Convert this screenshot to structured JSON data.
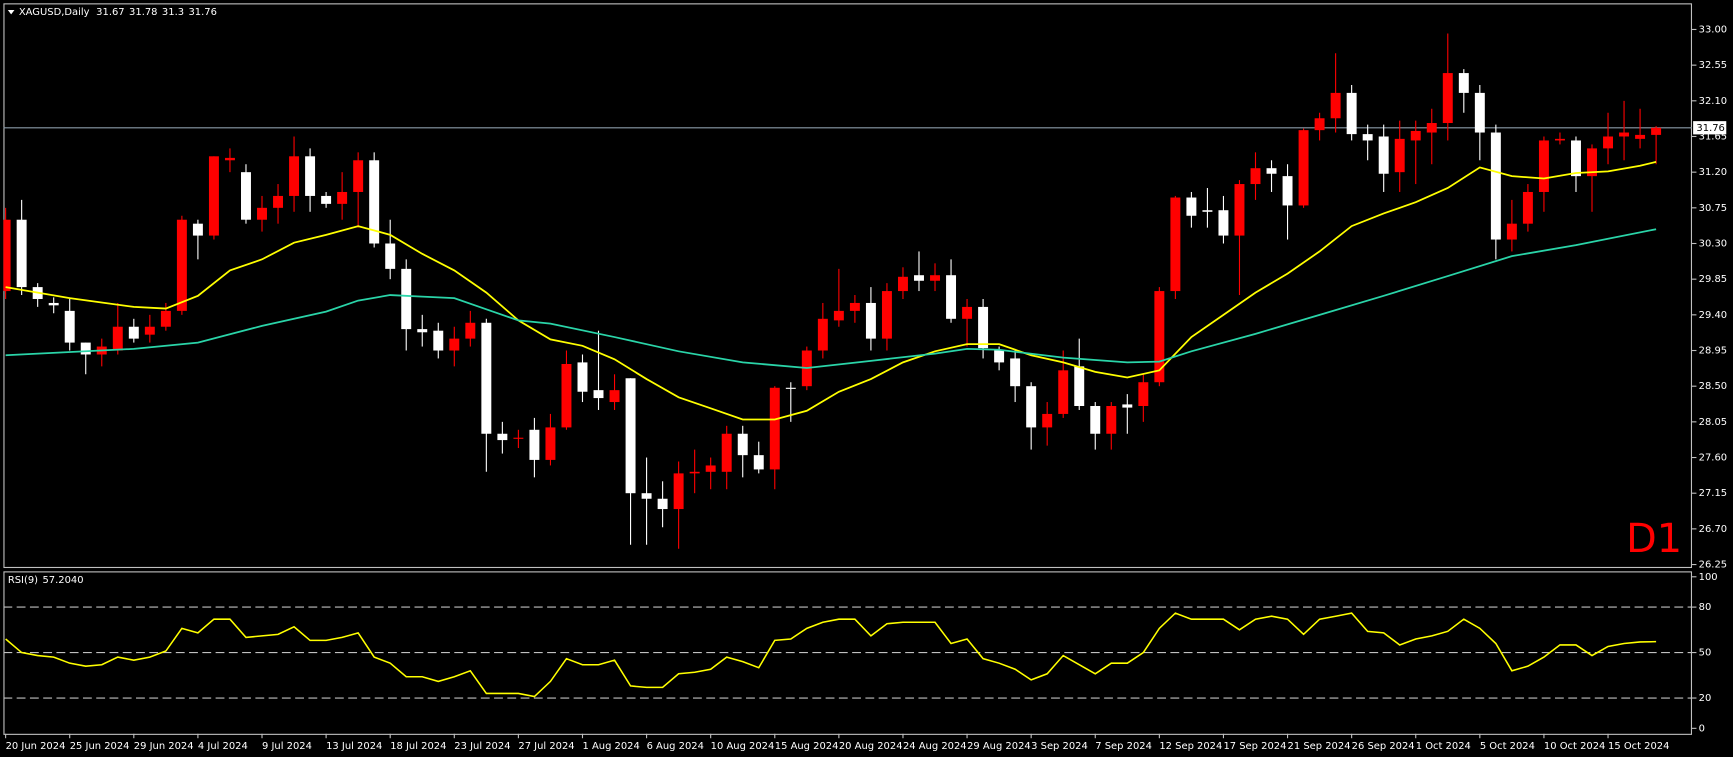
{
  "chart_data": {
    "type": "candlestick",
    "symbol": "XAGUSD,Daily",
    "timeframe_label": "D1",
    "categories": [
      "20 Jun 2024",
      null,
      null,
      null,
      "25 Jun 2024",
      null,
      null,
      null,
      "29 Jun 2024",
      null,
      null,
      null,
      "4 Jul 2024",
      null,
      null,
      null,
      "9 Jul 2024",
      null,
      null,
      null,
      "13 Jul 2024",
      null,
      null,
      null,
      "18 Jul 2024",
      null,
      null,
      null,
      "23 Jul 2024",
      null,
      null,
      null,
      "27 Jul 2024",
      null,
      null,
      null,
      "1 Aug 2024",
      null,
      null,
      null,
      "6 Aug 2024",
      null,
      null,
      null,
      "10 Aug 2024",
      null,
      null,
      null,
      "15 Aug 2024",
      null,
      null,
      null,
      "20 Aug 2024",
      null,
      null,
      null,
      "24 Aug 2024",
      null,
      null,
      null,
      "29 Aug 2024",
      null,
      null,
      null,
      "3 Sep 2024",
      null,
      null,
      null,
      "7 Sep 2024",
      null,
      null,
      null,
      "12 Sep 2024",
      null,
      null,
      null,
      "17 Sep 2024",
      null,
      null,
      null,
      "21 Sep 2024",
      null,
      null,
      null,
      "26 Sep 2024",
      null,
      null,
      null,
      "1 Oct 2024",
      null,
      null,
      null,
      "5 Oct 2024",
      null,
      null,
      null,
      "10 Oct 2024",
      null,
      null,
      null,
      "15 Oct 2024",
      null,
      null,
      null
    ],
    "open": [
      29.7,
      30.6,
      29.75,
      29.55,
      29.45,
      29.05,
      28.9,
      28.95,
      29.25,
      29.15,
      29.25,
      29.45,
      30.55,
      30.4,
      31.35,
      31.2,
      30.6,
      30.75,
      30.9,
      31.4,
      30.9,
      30.8,
      30.95,
      31.35,
      30.3,
      29.98,
      29.22,
      29.2,
      28.95,
      29.1,
      29.3,
      27.9,
      27.85,
      27.95,
      27.57,
      27.98,
      28.8,
      28.45,
      28.3,
      28.6,
      27.15,
      27.08,
      26.95,
      27.4,
      27.42,
      27.42,
      27.9,
      27.63,
      27.45,
      28.48,
      28.5,
      28.95,
      29.33,
      29.45,
      29.55,
      29.1,
      29.7,
      29.9,
      29.83,
      29.9,
      29.35,
      29.5,
      28.95,
      28.85,
      28.5,
      27.98,
      28.15,
      28.75,
      28.25,
      27.9,
      28.27,
      28.25,
      28.55,
      29.7,
      30.88,
      30.72,
      30.72,
      30.4,
      31.05,
      31.25,
      31.15,
      30.78,
      31.73,
      31.88,
      32.2,
      31.68,
      31.65,
      31.2,
      31.6,
      31.7,
      31.82,
      32.45,
      32.2,
      31.7,
      30.35,
      30.55,
      30.95,
      31.6,
      31.6,
      31.15,
      31.5,
      31.65,
      31.62,
      31.67
    ],
    "high": [
      30.75,
      30.85,
      29.8,
      29.62,
      29.6,
      29.05,
      29.1,
      29.55,
      29.35,
      29.4,
      29.55,
      30.65,
      30.6,
      31.4,
      31.5,
      31.3,
      30.9,
      31.05,
      31.65,
      31.5,
      30.95,
      31.2,
      31.45,
      31.45,
      30.6,
      30.1,
      29.4,
      29.3,
      29.25,
      29.45,
      29.35,
      28.05,
      27.95,
      28.1,
      28.15,
      28.95,
      28.9,
      29.2,
      28.65,
      28.6,
      27.6,
      27.3,
      27.55,
      27.7,
      27.6,
      28.0,
      28.0,
      27.8,
      28.5,
      28.55,
      29.0,
      29.55,
      29.98,
      29.65,
      29.75,
      29.8,
      30.0,
      30.2,
      30.05,
      30.1,
      29.6,
      29.6,
      29.0,
      28.95,
      28.55,
      28.3,
      28.95,
      29.1,
      28.3,
      28.3,
      28.4,
      28.65,
      29.75,
      30.9,
      30.95,
      31.0,
      30.9,
      31.1,
      31.45,
      31.35,
      31.3,
      31.75,
      31.95,
      32.7,
      32.3,
      31.8,
      31.8,
      31.85,
      31.85,
      32.0,
      32.95,
      32.5,
      32.3,
      31.8,
      30.85,
      31.05,
      31.65,
      31.7,
      31.65,
      31.55,
      31.95,
      32.1,
      32.0,
      31.78
    ],
    "low": [
      29.6,
      29.65,
      29.5,
      29.42,
      28.95,
      28.65,
      28.75,
      28.9,
      29.05,
      29.05,
      29.2,
      29.4,
      30.1,
      30.35,
      31.2,
      30.55,
      30.45,
      30.55,
      30.7,
      30.7,
      30.75,
      30.6,
      30.5,
      30.25,
      29.85,
      28.95,
      29.0,
      28.85,
      28.75,
      29.0,
      27.42,
      27.65,
      27.72,
      27.35,
      27.5,
      27.95,
      28.3,
      28.2,
      28.2,
      26.5,
      26.5,
      26.72,
      26.45,
      27.15,
      27.2,
      27.2,
      27.35,
      27.4,
      27.2,
      28.05,
      28.45,
      28.85,
      29.25,
      29.3,
      28.95,
      28.95,
      29.6,
      29.7,
      29.7,
      29.3,
      29.0,
      28.85,
      28.7,
      28.3,
      27.7,
      27.75,
      28.1,
      28.2,
      27.7,
      27.7,
      27.9,
      28.05,
      28.5,
      29.6,
      30.5,
      30.5,
      30.3,
      29.65,
      30.85,
      30.95,
      30.35,
      30.75,
      31.6,
      31.7,
      31.6,
      31.35,
      30.95,
      30.95,
      31.05,
      31.3,
      31.6,
      31.95,
      31.35,
      30.1,
      30.2,
      30.45,
      30.7,
      31.55,
      30.95,
      30.7,
      31.3,
      31.35,
      31.5,
      31.3
    ],
    "close": [
      30.6,
      29.75,
      29.6,
      29.52,
      29.05,
      28.9,
      29.0,
      29.25,
      29.1,
      29.25,
      29.45,
      30.6,
      30.4,
      31.4,
      31.38,
      30.6,
      30.75,
      30.9,
      31.4,
      30.9,
      30.8,
      30.95,
      31.35,
      30.3,
      29.98,
      29.22,
      29.18,
      28.95,
      29.1,
      29.3,
      27.9,
      27.82,
      27.85,
      27.57,
      27.98,
      28.78,
      28.43,
      28.35,
      28.45,
      27.15,
      27.08,
      26.95,
      27.4,
      27.42,
      27.5,
      27.9,
      27.63,
      27.45,
      28.48,
      28.47,
      28.95,
      29.35,
      29.45,
      29.55,
      29.1,
      29.7,
      29.88,
      29.83,
      29.9,
      29.35,
      29.5,
      28.98,
      28.8,
      28.5,
      27.98,
      28.15,
      28.7,
      28.25,
      27.9,
      28.25,
      28.23,
      28.55,
      29.7,
      30.88,
      30.65,
      30.7,
      30.4,
      31.05,
      31.25,
      31.18,
      30.78,
      31.73,
      31.88,
      32.2,
      31.68,
      31.6,
      31.18,
      31.62,
      31.72,
      31.82,
      32.45,
      32.2,
      31.7,
      30.35,
      30.55,
      30.95,
      31.6,
      31.62,
      31.15,
      31.5,
      31.65,
      31.7,
      31.67,
      31.76
    ],
    "up_color": "#ff0000",
    "down_color": "#ffffff",
    "ylim": [
      26.22,
      33.33
    ],
    "yticks": [
      {
        "value": 33,
        "label": "33.00"
      },
      {
        "value": 32.55,
        "label": "32.55"
      },
      {
        "value": 32.1,
        "label": "32.10"
      },
      {
        "value": 31.65,
        "label": "31.65"
      },
      {
        "value": 31.2,
        "label": "31.20"
      },
      {
        "value": 30.75,
        "label": "30.75"
      },
      {
        "value": 30.3,
        "label": "30.30"
      },
      {
        "value": 29.85,
        "label": "29.85"
      },
      {
        "value": 29.4,
        "label": "29.40"
      },
      {
        "value": 28.95,
        "label": "28.95"
      },
      {
        "value": 28.5,
        "label": "28.50"
      },
      {
        "value": 28.05,
        "label": "28.05"
      },
      {
        "value": 27.6,
        "label": "27.60"
      },
      {
        "value": 27.15,
        "label": "27.15"
      },
      {
        "value": 26.7,
        "label": "26.70"
      },
      {
        "value": 26.25,
        "label": "26.25"
      }
    ],
    "current_price": 31.76,
    "moving_averages": [
      {
        "color": "#ffff00",
        "x": [
          0,
          4,
          8,
          10,
          12,
          14,
          16,
          18,
          20,
          22,
          24,
          26,
          28,
          30,
          32,
          34,
          36,
          38,
          40,
          42,
          44,
          46,
          48,
          50,
          52,
          54,
          56,
          58,
          60,
          62,
          64,
          66,
          68,
          70,
          72,
          74,
          76,
          78,
          80,
          82,
          84,
          86,
          88,
          90,
          92,
          94,
          96,
          98,
          100,
          102,
          103
        ],
        "values": [
          29.75,
          29.61,
          29.5,
          29.48,
          29.64,
          29.96,
          30.1,
          30.31,
          30.41,
          30.52,
          30.41,
          30.17,
          29.96,
          29.68,
          29.33,
          29.09,
          29.01,
          28.84,
          28.59,
          28.36,
          28.22,
          28.08,
          28.08,
          28.19,
          28.43,
          28.59,
          28.8,
          28.94,
          29.03,
          29.03,
          28.89,
          28.8,
          28.68,
          28.61,
          28.7,
          29.12,
          29.4,
          29.68,
          29.92,
          30.2,
          30.52,
          30.68,
          30.82,
          31.0,
          31.26,
          31.15,
          31.12,
          31.19,
          31.21,
          31.28,
          31.33
        ]
      },
      {
        "color": "#2ad4a8",
        "x": [
          0,
          8,
          12,
          16,
          20,
          22,
          24,
          26,
          28,
          30,
          32,
          34,
          38,
          42,
          46,
          50,
          54,
          58,
          60,
          62,
          66,
          70,
          72,
          74,
          78,
          82,
          86,
          90,
          94,
          98,
          103
        ],
        "values": [
          28.89,
          28.97,
          29.05,
          29.26,
          29.44,
          29.58,
          29.65,
          29.63,
          29.61,
          29.47,
          29.33,
          29.29,
          29.12,
          28.94,
          28.8,
          28.73,
          28.82,
          28.91,
          28.97,
          28.96,
          28.86,
          28.8,
          28.81,
          28.94,
          29.16,
          29.4,
          29.64,
          29.89,
          30.14,
          30.28,
          30.48
        ]
      }
    ],
    "rsi": {
      "label": "RSI(9)",
      "current_label": "57.2040",
      "color": "#ffff00",
      "values": [
        59,
        50,
        48,
        47,
        43,
        41,
        42,
        47,
        45,
        47,
        51,
        66,
        63,
        72,
        72,
        60,
        61,
        62,
        67,
        58,
        58,
        60,
        63,
        47,
        43,
        34,
        34,
        31,
        34,
        38,
        23,
        23,
        23,
        21,
        31,
        46,
        42,
        42,
        45,
        28,
        27,
        27,
        36,
        37,
        39,
        47,
        44,
        40,
        58,
        59,
        66,
        70,
        72,
        72,
        61,
        69,
        70,
        70,
        70,
        56,
        59,
        46,
        43,
        39,
        32,
        36,
        48,
        42,
        36,
        43,
        43,
        50,
        66,
        76,
        72,
        72,
        72,
        65,
        72,
        74,
        72,
        62,
        72,
        74,
        76,
        64,
        63,
        55,
        59,
        61,
        64,
        72,
        66,
        56,
        38,
        41,
        47,
        55,
        55,
        48,
        54,
        56,
        57,
        57.204
      ],
      "ylim": [
        -3.6,
        103.6
      ],
      "yticks": [
        100,
        80,
        50,
        20,
        0
      ],
      "levels": [
        80,
        50,
        20
      ]
    }
  }
}
